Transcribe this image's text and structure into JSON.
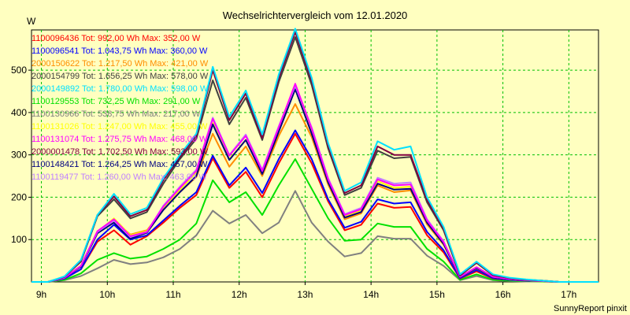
{
  "chart_data": {
    "type": "line",
    "title": "Wechselrichtervergleich vom 12.01.2020",
    "ylabel": "W",
    "xlabel": "",
    "credit": "SunnyReport pinxit",
    "xlim": [
      8.85,
      17.45
    ],
    "ylim": [
      0,
      595
    ],
    "x_ticks": [
      9,
      10,
      11,
      12,
      13,
      14,
      15,
      16,
      17
    ],
    "x_tick_labels": [
      "9h",
      "10h",
      "11h",
      "12h",
      "13h",
      "14h",
      "15h",
      "16h",
      "17h"
    ],
    "y_ticks": [
      100,
      200,
      300,
      400,
      500
    ],
    "y_tick_labels": [
      "100",
      "200",
      "300",
      "400",
      "500"
    ],
    "grid": true,
    "x": [
      8.85,
      9.1,
      9.35,
      9.6,
      9.85,
      10.1,
      10.35,
      10.6,
      10.85,
      11.1,
      11.35,
      11.6,
      11.85,
      12.1,
      12.35,
      12.6,
      12.85,
      13.1,
      13.35,
      13.6,
      13.85,
      14.1,
      14.35,
      14.6,
      14.85,
      15.1,
      15.35,
      15.6,
      15.85,
      16.1,
      16.35,
      16.6,
      16.85,
      17.1,
      17.45
    ],
    "series": [
      {
        "name": "1100096436",
        "legend": "1100096436 Tot: 992,00 Wh Max: 352,00 W",
        "color": "#ff0000",
        "values": [
          0,
          0,
          8,
          30,
          95,
          122,
          88,
          108,
          140,
          175,
          205,
          292,
          222,
          260,
          200,
          280,
          350,
          280,
          190,
          122,
          135,
          185,
          175,
          177,
          110,
          70,
          8,
          25,
          8,
          5,
          3,
          2,
          0,
          0,
          0
        ]
      },
      {
        "name": "1100096541",
        "legend": "1100096541 Tot: 1.043,75 Wh Max: 360,00 W",
        "color": "#0000ff",
        "values": [
          0,
          0,
          8,
          30,
          100,
          135,
          100,
          110,
          145,
          180,
          212,
          298,
          228,
          270,
          210,
          290,
          358,
          290,
          195,
          128,
          142,
          195,
          185,
          188,
          118,
          75,
          9,
          28,
          9,
          5,
          3,
          2,
          0,
          0,
          0
        ]
      },
      {
        "name": "2000150622",
        "legend": "2000150622 Tot: 1.217,50 Wh Max: 421,00 W",
        "color": "#ff8c00",
        "values": [
          0,
          0,
          10,
          36,
          115,
          145,
          112,
          122,
          170,
          212,
          248,
          350,
          272,
          320,
          250,
          345,
          420,
          342,
          230,
          148,
          162,
          228,
          212,
          216,
          136,
          88,
          11,
          32,
          11,
          6,
          4,
          2,
          0,
          0,
          0
        ]
      },
      {
        "name": "2000154799",
        "legend": "2000154799 Tot: 1.656,25 Wh Max: 578,00 W",
        "color": "#404040",
        "values": [
          0,
          0,
          12,
          48,
          155,
          195,
          150,
          165,
          232,
          290,
          338,
          476,
          372,
          435,
          335,
          472,
          578,
          465,
          315,
          205,
          222,
          310,
          292,
          295,
          188,
          122,
          15,
          45,
          16,
          9,
          5,
          3,
          0,
          0,
          0
        ]
      },
      {
        "name": "2000149892",
        "legend": "2000149892 Tot: 1.780,00 Wh Max: 598,00 W",
        "color": "#00e0ff",
        "values": [
          0,
          0,
          13,
          52,
          158,
          208,
          160,
          175,
          245,
          300,
          350,
          508,
          390,
          452,
          348,
          490,
          598,
          482,
          328,
          215,
          235,
          332,
          312,
          320,
          200,
          130,
          18,
          48,
          18,
          10,
          6,
          3,
          0,
          0,
          0
        ]
      },
      {
        "name": "1100129553",
        "legend": "1100129553 Tot: 732,25 Wh Max: 291,00 W",
        "color": "#00e000",
        "values": [
          0,
          0,
          5,
          20,
          52,
          68,
          55,
          60,
          78,
          100,
          138,
          240,
          188,
          212,
          158,
          228,
          290,
          220,
          150,
          97,
          100,
          138,
          130,
          130,
          78,
          48,
          5,
          18,
          5,
          3,
          2,
          1,
          0,
          0,
          0
        ]
      },
      {
        "name": "1100130966",
        "legend": "1100130966 Tot: 538,75 Wh Max: 217,00 W",
        "color": "#808080",
        "values": [
          0,
          0,
          4,
          14,
          32,
          52,
          42,
          46,
          58,
          78,
          110,
          168,
          138,
          158,
          115,
          140,
          215,
          140,
          95,
          60,
          68,
          108,
          102,
          102,
          62,
          38,
          4,
          14,
          4,
          2,
          1,
          1,
          0,
          0,
          0
        ]
      },
      {
        "name": "1100131026",
        "legend": "1100131026 Tot: 1.247,00 Wh Max: 455,00 W",
        "color": "#ffff00",
        "values": [
          0,
          0,
          10,
          38,
          118,
          150,
          110,
          120,
          175,
          218,
          258,
          375,
          290,
          335,
          258,
          358,
          455,
          355,
          238,
          155,
          168,
          238,
          222,
          225,
          142,
          92,
          12,
          34,
          12,
          7,
          4,
          2,
          0,
          0,
          0
        ]
      },
      {
        "name": "1100131074",
        "legend": "1100131074 Tot: 1.275,75 Wh Max: 468,00 W",
        "color": "#ff00ff",
        "values": [
          0,
          0,
          10,
          38,
          120,
          148,
          108,
          118,
          178,
          222,
          262,
          385,
          298,
          345,
          262,
          365,
          468,
          362,
          242,
          158,
          172,
          242,
          228,
          230,
          145,
          94,
          12,
          35,
          12,
          7,
          4,
          2,
          0,
          0,
          0
        ]
      },
      {
        "name": "2000001478",
        "legend": "2000001478 Tot: 1.702,50 Wh Max: 593,00 W",
        "color": "#800040",
        "values": [
          0,
          0,
          12,
          50,
          158,
          202,
          155,
          170,
          240,
          295,
          345,
          500,
          382,
          445,
          340,
          482,
          590,
          475,
          322,
          210,
          228,
          320,
          300,
          300,
          194,
          126,
          16,
          46,
          16,
          9,
          5,
          3,
          0,
          0,
          0
        ]
      },
      {
        "name": "1100148421",
        "legend": "1100148421 Tot: 1.264,25 Wh Max: 457,00 W",
        "color": "#000080",
        "values": [
          0,
          0,
          10,
          36,
          115,
          140,
          102,
          116,
          170,
          212,
          250,
          372,
          288,
          335,
          255,
          355,
          455,
          350,
          235,
          152,
          165,
          232,
          218,
          220,
          140,
          90,
          11,
          33,
          11,
          6,
          4,
          2,
          0,
          0,
          0
        ]
      },
      {
        "name": "1100119477",
        "legend": "1100119477 Tot: 1.260,00 Wh Max: 463,00 W",
        "color": "#c080ff",
        "values": [
          0,
          0,
          10,
          38,
          118,
          145,
          106,
          118,
          180,
          225,
          265,
          388,
          300,
          348,
          265,
          368,
          463,
          365,
          245,
          160,
          175,
          246,
          232,
          235,
          148,
          96,
          12,
          35,
          12,
          7,
          4,
          2,
          0,
          0,
          0
        ]
      }
    ]
  }
}
